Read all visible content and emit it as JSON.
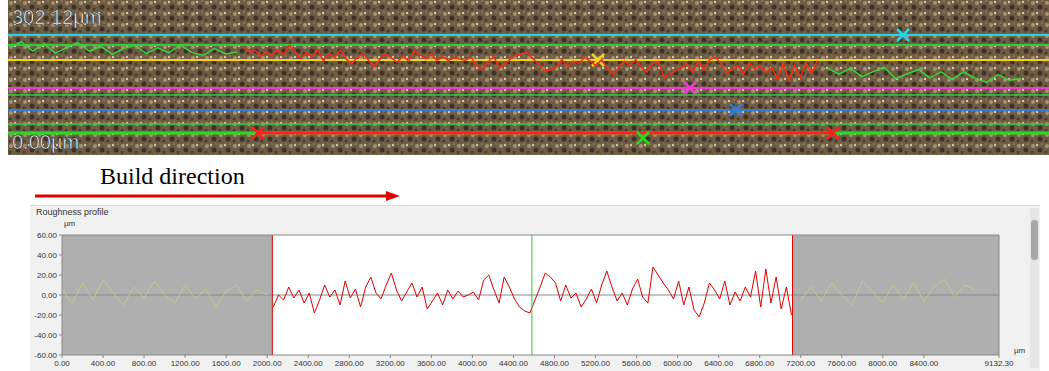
{
  "image": {
    "scale_top": "302.12µm",
    "scale_bottom": "0.00µm"
  },
  "annotation": "Build direction",
  "chart_data": {
    "type": "line",
    "title": "Roughness profile",
    "xlabel": "µm",
    "ylabel": "µm",
    "xlim": [
      0,
      9132.3
    ],
    "xticks": [
      {
        "value": 0,
        "label": "0.00"
      },
      {
        "value": 400,
        "label": "400.00"
      },
      {
        "value": 800,
        "label": "800.00"
      },
      {
        "value": 1200,
        "label": "1200.00"
      },
      {
        "value": 1600,
        "label": "1600.00"
      },
      {
        "value": 2000,
        "label": "2000.00"
      },
      {
        "value": 2400,
        "label": "2400.00"
      },
      {
        "value": 2800,
        "label": "2800.00"
      },
      {
        "value": 3200,
        "label": "3200.00"
      },
      {
        "value": 3600,
        "label": "3600.00"
      },
      {
        "value": 4000,
        "label": "4000.00"
      },
      {
        "value": 4400,
        "label": "4400.00"
      },
      {
        "value": 4800,
        "label": "4800.00"
      },
      {
        "value": 5200,
        "label": "5200.00"
      },
      {
        "value": 5600,
        "label": "5600.00"
      },
      {
        "value": 6000,
        "label": "6000.00"
      },
      {
        "value": 6400,
        "label": "6400.00"
      },
      {
        "value": 6800,
        "label": "6800.00"
      },
      {
        "value": 7200,
        "label": "7200.00"
      },
      {
        "value": 7600,
        "label": "7600.00"
      },
      {
        "value": 8000,
        "label": "8000.00"
      },
      {
        "value": 8400,
        "label": "8400.00"
      },
      {
        "value": 9132.3,
        "label": "9132.30"
      }
    ],
    "ylim": [
      -60,
      60
    ],
    "yticks": [
      {
        "value": -60,
        "label": "-60.00"
      },
      {
        "value": -40,
        "label": "-40.00"
      },
      {
        "value": -20,
        "label": "-20.00"
      },
      {
        "value": 0,
        "label": "0.00"
      },
      {
        "value": 20,
        "label": "20.00"
      },
      {
        "value": 40,
        "label": "40.00"
      },
      {
        "value": 60,
        "label": "60.00"
      }
    ],
    "grid": false,
    "baseline": 0,
    "cursor_x": 4580,
    "excluded_ranges": [
      [
        0,
        2050
      ],
      [
        7120,
        9132.3
      ]
    ],
    "series": [
      {
        "color": "#e00000",
        "x": [
          2060,
          2110,
          2160,
          2210,
          2260,
          2310,
          2360,
          2410,
          2460,
          2510,
          2560,
          2610,
          2660,
          2710,
          2760,
          2810,
          2860,
          2910,
          2960,
          3010,
          3060,
          3110,
          3160,
          3210,
          3260,
          3310,
          3360,
          3410,
          3460,
          3510,
          3560,
          3610,
          3660,
          3710,
          3760,
          3810,
          3860,
          3910,
          3960,
          4010,
          4060,
          4110,
          4160,
          4210,
          4260,
          4310,
          4360,
          4410,
          4460,
          4510,
          4560,
          4610,
          4660,
          4710,
          4760,
          4810,
          4860,
          4910,
          4960,
          5010,
          5060,
          5110,
          5160,
          5210,
          5260,
          5310,
          5360,
          5410,
          5460,
          5510,
          5560,
          5610,
          5660,
          5710,
          5760,
          5810,
          5860,
          5910,
          5960,
          6010,
          6060,
          6110,
          6160,
          6210,
          6260,
          6310,
          6360,
          6410,
          6460,
          6510,
          6560,
          6610,
          6660,
          6710,
          6760,
          6810,
          6860,
          6910,
          6960,
          7010,
          7060,
          7110
        ],
        "values": [
          -12,
          0,
          -5,
          8,
          -3,
          5,
          -8,
          2,
          -18,
          -5,
          10,
          -2,
          5,
          -10,
          14,
          -3,
          6,
          -12,
          8,
          18,
          2,
          -4,
          10,
          22,
          5,
          -6,
          3,
          12,
          -2,
          8,
          -14,
          -6,
          2,
          -10,
          5,
          -4,
          4,
          -2,
          0,
          3,
          -5,
          15,
          20,
          5,
          -8,
          18,
          8,
          -4,
          -12,
          -16,
          -18,
          -5,
          8,
          22,
          18,
          12,
          -6,
          10,
          -3,
          2,
          -12,
          -4,
          6,
          -8,
          10,
          24,
          8,
          -6,
          2,
          -10,
          6,
          16,
          -2,
          -8,
          28,
          20,
          12,
          5,
          -4,
          14,
          -10,
          8,
          -15,
          -22,
          -8,
          12,
          5,
          -4,
          14,
          -10,
          3,
          -6,
          8,
          -2,
          24,
          -12,
          26,
          -8,
          18,
          -14,
          8,
          -20
        ]
      },
      {
        "color": "#c8c88a",
        "x": [
          0,
          100,
          200,
          300,
          400,
          500,
          600,
          700,
          800,
          900,
          1000,
          1100,
          1200,
          1300,
          1400,
          1500,
          1600,
          1700,
          1800,
          1900,
          2000
        ],
        "values": [
          5,
          -8,
          12,
          -5,
          15,
          2,
          -10,
          8,
          -3,
          14,
          0,
          -8,
          10,
          -4,
          6,
          -12,
          4,
          10,
          -6,
          5,
          0
        ]
      },
      {
        "color": "#c8c88a",
        "x": [
          7200,
          7300,
          7400,
          7500,
          7600,
          7700,
          7800,
          7900,
          8000,
          8100,
          8200,
          8300,
          8400,
          8500,
          8600,
          8700,
          8800,
          8900
        ],
        "values": [
          -5,
          8,
          -6,
          12,
          0,
          -10,
          14,
          3,
          -8,
          10,
          -4,
          12,
          -6,
          8,
          16,
          -2,
          10,
          5
        ]
      }
    ]
  }
}
